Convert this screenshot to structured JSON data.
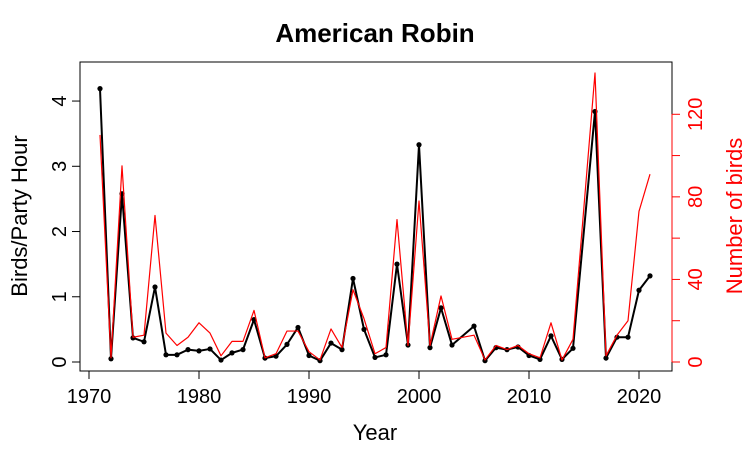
{
  "chart_data": {
    "type": "line",
    "title": "American Robin",
    "xlabel": "Year",
    "ylabel": "Birds/Party Hour",
    "y2label": "Number of birds",
    "xlim": [
      1971,
      2021
    ],
    "ylim": [
      0,
      4.2
    ],
    "y2lim": [
      0,
      140
    ],
    "xticks": [
      1970,
      1980,
      1990,
      2000,
      2010,
      2020
    ],
    "yticks": [
      0,
      1,
      2,
      3,
      4
    ],
    "y2ticks": [
      0,
      40,
      80,
      120
    ],
    "grid": false,
    "colors": {
      "primary": "#000000",
      "secondary": "#ff0000"
    },
    "x": [
      1971,
      1972,
      1973,
      1974,
      1975,
      1976,
      1977,
      1978,
      1979,
      1980,
      1981,
      1982,
      1983,
      1984,
      1985,
      1986,
      1987,
      1988,
      1989,
      1990,
      1991,
      1992,
      1993,
      1994,
      1995,
      1996,
      1997,
      1998,
      1999,
      2000,
      2001,
      2002,
      2003,
      2005,
      2006,
      2007,
      2008,
      2009,
      2010,
      2011,
      2012,
      2013,
      2014,
      2016,
      2017,
      2018,
      2019,
      2020,
      2021
    ],
    "series": [
      {
        "axis": "left",
        "style": "line+points",
        "values": [
          4.19,
          0.05,
          2.58,
          0.37,
          0.31,
          1.15,
          0.11,
          0.11,
          0.19,
          0.17,
          0.2,
          0.03,
          0.14,
          0.19,
          0.65,
          0.06,
          0.09,
          0.27,
          0.53,
          0.1,
          0.02,
          0.29,
          0.19,
          1.28,
          0.5,
          0.07,
          0.11,
          1.5,
          0.26,
          3.33,
          0.22,
          0.83,
          0.26,
          0.55,
          0.02,
          0.22,
          0.19,
          0.23,
          0.1,
          0.04,
          0.4,
          0.04,
          0.21,
          3.84,
          0.06,
          0.38,
          0.38,
          1.1,
          1.32
        ]
      },
      {
        "axis": "right",
        "style": "line",
        "values": [
          110,
          2,
          95,
          12,
          13,
          71,
          14,
          8,
          12,
          19,
          14,
          3,
          10,
          10,
          25,
          2,
          4,
          15,
          15,
          5,
          1,
          16,
          7,
          35,
          21,
          4,
          7,
          69,
          8,
          78,
          8,
          32,
          11,
          13,
          1,
          8,
          6,
          8,
          4,
          2,
          19,
          1,
          11,
          140,
          3,
          13,
          20,
          73,
          91
        ]
      }
    ]
  }
}
